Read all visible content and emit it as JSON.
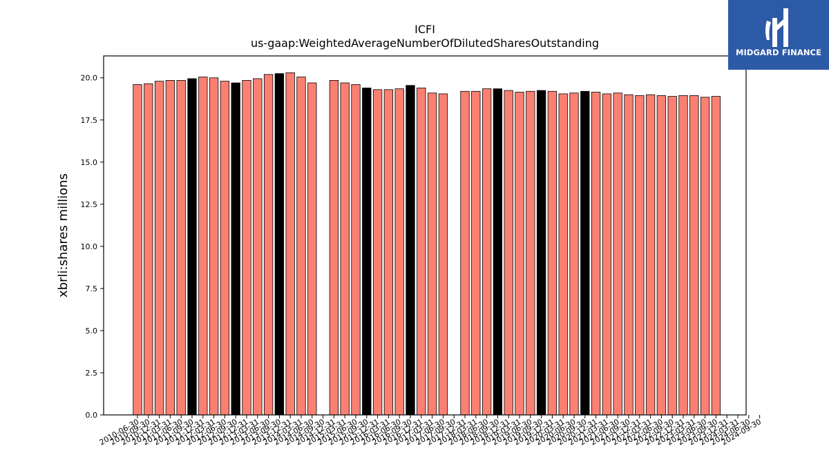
{
  "logo": {
    "text": "MIDGARD FINANCE",
    "background": "#2d5aa6",
    "icon": "midgard-logo-icon"
  },
  "chart_data": {
    "type": "bar",
    "title": "ICFI",
    "subtitle": "us-gaap:WeightedAverageNumberOfDilutedSharesOutstanding",
    "xlabel": "",
    "ylabel": "xbrli:shares millions",
    "ylim": [
      0,
      21.3
    ],
    "yticks": [
      "0.0",
      "2.5",
      "5.0",
      "7.5",
      "10.0",
      "12.5",
      "15.0",
      "17.5",
      "20.0"
    ],
    "grid": false,
    "colors": {
      "quarter": "#fa8072",
      "annual": "#000000",
      "edge": "#000000"
    },
    "categories": [
      "2010-06-30",
      "2010-09-30",
      "2010-12-31",
      "2011-03-31",
      "2011-06-30",
      "2011-09-30",
      "2011-12-31",
      "2012-03-31",
      "2012-06-30",
      "2012-09-30",
      "2012-12-31",
      "2013-03-31",
      "2013-06-30",
      "2013-09-30",
      "2013-12-31",
      "2014-03-31",
      "2014-06-30",
      "2014-09-30",
      "2014-12-31",
      "2015-03-31",
      "2015-06-30",
      "2015-09-30",
      "2015-12-31",
      "2016-03-31",
      "2016-06-30",
      "2016-09-30",
      "2016-12-31",
      "2017-03-31",
      "2017-06-30",
      "2017-09-30",
      "2017-12-31",
      "2018-03-31",
      "2018-06-30",
      "2018-09-30",
      "2018-12-31",
      "2019-03-31",
      "2019-06-30",
      "2019-09-30",
      "2019-12-31",
      "2020-03-31",
      "2020-06-30",
      "2020-09-30",
      "2020-12-31",
      "2021-03-31",
      "2021-06-30",
      "2021-09-30",
      "2021-12-31",
      "2022-03-31",
      "2022-06-30",
      "2022-09-30",
      "2022-12-31",
      "2023-03-31",
      "2023-06-30",
      "2023-09-30",
      "2023-12-31",
      "2024-03-31",
      "2024-06-30",
      "2024-09-30"
    ],
    "values": [
      19.6,
      19.65,
      19.8,
      19.85,
      19.85,
      19.95,
      20.05,
      20.0,
      19.8,
      19.7,
      19.85,
      19.95,
      20.2,
      20.25,
      20.3,
      20.05,
      19.7,
      null,
      19.85,
      19.7,
      19.6,
      19.4,
      19.3,
      19.3,
      19.35,
      19.55,
      19.4,
      19.1,
      19.05,
      null,
      19.2,
      19.2,
      19.35,
      19.35,
      19.25,
      19.15,
      19.2,
      19.25,
      19.2,
      19.05,
      19.1,
      19.2,
      19.15,
      19.05,
      19.1,
      19.0,
      18.95,
      19.0,
      18.95,
      18.9,
      18.95,
      18.95,
      18.85,
      18.9,
      null,
      null,
      null,
      null
    ],
    "annual": [
      false,
      false,
      false,
      false,
      false,
      true,
      false,
      false,
      false,
      true,
      false,
      false,
      false,
      true,
      false,
      false,
      false,
      false,
      false,
      false,
      false,
      true,
      false,
      false,
      false,
      true,
      false,
      false,
      false,
      false,
      false,
      false,
      false,
      true,
      false,
      false,
      false,
      true,
      false,
      false,
      false,
      true,
      false,
      false,
      false,
      false,
      false,
      false,
      false,
      false,
      false,
      false,
      false,
      false,
      false,
      false,
      false,
      false
    ]
  }
}
